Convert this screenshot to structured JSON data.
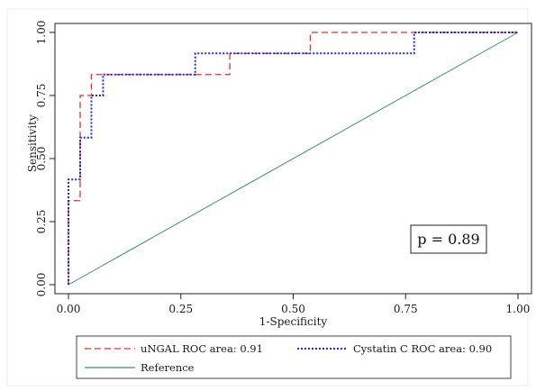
{
  "chart_data": {
    "type": "line",
    "xlabel": "1-Specificity",
    "ylabel": "Sensitivity",
    "xlim": [
      0,
      1
    ],
    "ylim": [
      0,
      1
    ],
    "x_ticks": [
      "0.00",
      "0.25",
      "0.50",
      "0.75",
      "1.00"
    ],
    "y_ticks": [
      "0.00",
      "0.25",
      "0.50",
      "0.75",
      "1.00"
    ],
    "grid": false,
    "legend_position": "bottom",
    "annotation": "p = 0.89",
    "series": [
      {
        "name": "uNGAL ROC area: 0.91",
        "color": "#e8312f",
        "style": "dashed",
        "x": [
          0,
          0,
          0.026,
          0.026,
          0.051,
          0.051,
          0.359,
          0.359,
          0.538,
          0.538,
          1.0
        ],
        "y": [
          0,
          0.333,
          0.333,
          0.75,
          0.75,
          0.833,
          0.833,
          0.917,
          0.917,
          1.0,
          1.0
        ]
      },
      {
        "name": "Cystatin C ROC area: 0.90",
        "color": "#1f2ad8",
        "style": "dotted",
        "x": [
          0,
          0,
          0.026,
          0.026,
          0.051,
          0.051,
          0.077,
          0.077,
          0.282,
          0.282,
          0.769,
          0.769,
          1.0
        ],
        "y": [
          0,
          0.417,
          0.417,
          0.583,
          0.583,
          0.75,
          0.75,
          0.833,
          0.833,
          0.917,
          0.917,
          1.0,
          1.0
        ]
      },
      {
        "name": "Reference",
        "color": "#3f8f77",
        "style": "solid",
        "x": [
          0,
          1
        ],
        "y": [
          0,
          1
        ]
      }
    ]
  }
}
